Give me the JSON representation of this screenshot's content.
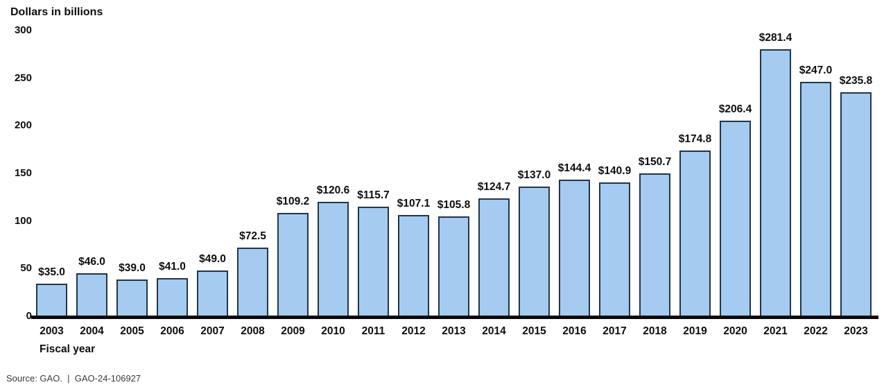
{
  "chart": {
    "title": "Dollars in billions",
    "xlabel": "Fiscal year",
    "source": "Source: GAO.  |  GAO-24-106927"
  },
  "chart_data": {
    "type": "bar",
    "title": "Dollars in billions",
    "xlabel": "Fiscal year",
    "ylabel": "Dollars in billions",
    "categories": [
      "2003",
      "2004",
      "2005",
      "2006",
      "2007",
      "2008",
      "2009",
      "2010",
      "2011",
      "2012",
      "2013",
      "2014",
      "2015",
      "2016",
      "2017",
      "2018",
      "2019",
      "2020",
      "2021",
      "2022",
      "2023"
    ],
    "values": [
      35.0,
      46.0,
      39.0,
      41.0,
      49.0,
      72.5,
      109.2,
      120.6,
      115.7,
      107.1,
      105.8,
      124.7,
      137.0,
      144.4,
      140.9,
      150.7,
      174.8,
      206.4,
      281.4,
      247.0,
      235.8
    ],
    "data_labels": [
      "$35.0",
      "$46.0",
      "$39.0",
      "$41.0",
      "$49.0",
      "$72.5",
      "$109.2",
      "$120.6",
      "$115.7",
      "$107.1",
      "$105.8",
      "$124.7",
      "$137.0",
      "$144.4",
      "$140.9",
      "$150.7",
      "$174.8",
      "$206.4",
      "$281.4",
      "$247.0",
      "$235.8"
    ],
    "yticks": [
      300,
      250,
      200,
      150,
      100,
      50,
      0
    ],
    "ylim": [
      0,
      300
    ],
    "grid": false,
    "legend": false,
    "bar_fill_color": "#A5CBF0",
    "bar_border_color": "#223448",
    "axis_line_color": "#0a0a0a",
    "source_note": "Source: GAO.  |  GAO-24-106927"
  }
}
